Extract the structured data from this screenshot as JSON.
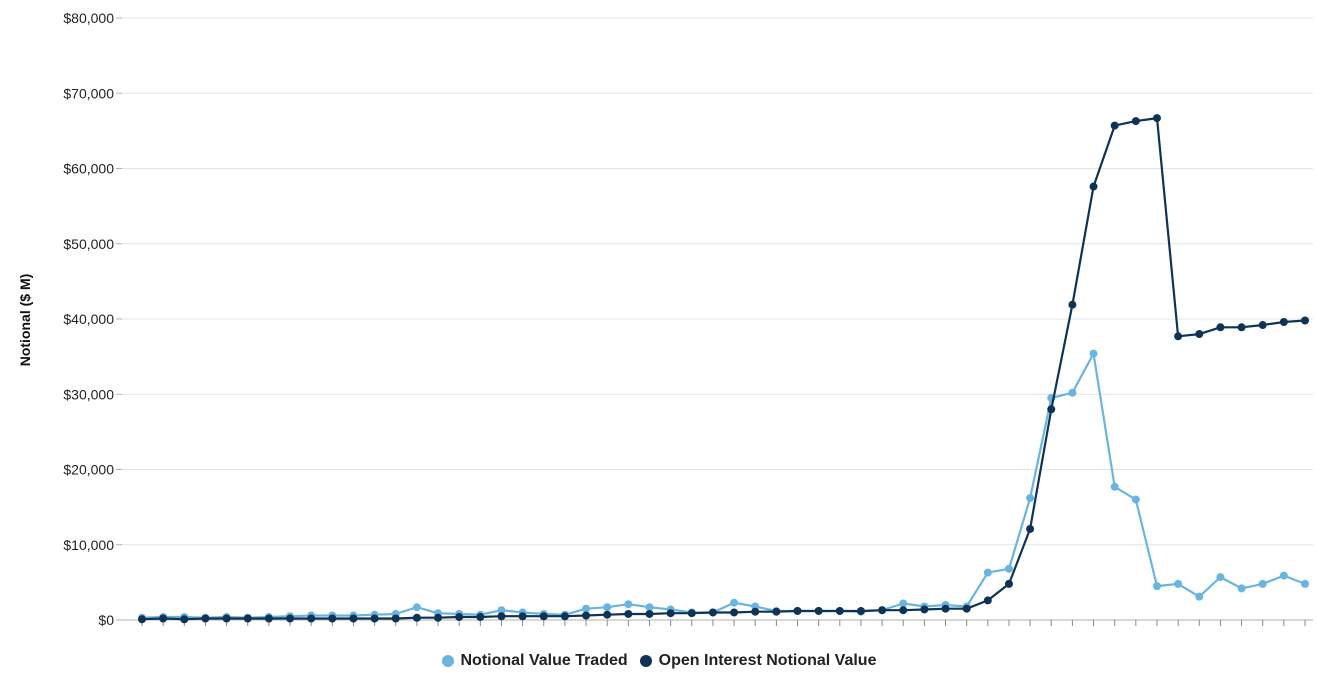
{
  "chart_data": {
    "type": "line",
    "title": "",
    "xlabel": "",
    "ylabel": "Notional ($ M)",
    "ylim": [
      0,
      80000
    ],
    "yticks": [
      "$0",
      "$10,000",
      "$20,000",
      "$30,000",
      "$40,000",
      "$50,000",
      "$60,000",
      "$70,000",
      "$80,000"
    ],
    "grid": "horizontal",
    "legend_position": "bottom-center",
    "x": [
      1,
      2,
      3,
      4,
      5,
      6,
      7,
      8,
      9,
      10,
      11,
      12,
      13,
      14,
      15,
      16,
      17,
      18,
      19,
      20,
      21,
      22,
      23,
      24,
      25,
      26,
      27,
      28,
      29,
      30,
      31,
      32,
      33,
      34,
      35,
      36,
      37,
      38,
      39,
      40,
      41,
      42,
      43,
      44,
      45,
      46,
      47,
      48,
      49,
      50,
      51,
      52,
      53,
      54,
      55,
      56
    ],
    "series": [
      {
        "name": "Notional Value Traded",
        "color": "#6ab4e2",
        "values": [
          300,
          400,
          400,
          300,
          400,
          300,
          400,
          500,
          600,
          600,
          600,
          700,
          800,
          1700,
          900,
          800,
          700,
          1300,
          1000,
          800,
          700,
          1500,
          1700,
          2100,
          1700,
          1400,
          1000,
          1000,
          2300,
          1800,
          1200,
          1200,
          1200,
          1200,
          1100,
          1300,
          2200,
          1800,
          2000,
          1800,
          6300,
          6800,
          16200,
          29500,
          30200,
          35400,
          17700,
          16000,
          4500,
          4800,
          3100,
          5700,
          4200,
          4800,
          5900,
          4800
        ]
      },
      {
        "name": "Open Interest Notional Value",
        "color": "#0e3354",
        "values": [
          100,
          200,
          100,
          200,
          200,
          200,
          200,
          200,
          200,
          200,
          200,
          200,
          200,
          300,
          300,
          400,
          400,
          500,
          500,
          500,
          500,
          600,
          700,
          800,
          800,
          900,
          900,
          1000,
          1000,
          1100,
          1100,
          1200,
          1200,
          1200,
          1200,
          1300,
          1300,
          1400,
          1500,
          1500,
          2600,
          4800,
          12100,
          28000,
          41900,
          57600,
          65700,
          66300,
          66700,
          37700,
          38000,
          38900,
          38900,
          39200,
          39600,
          39800
        ]
      }
    ]
  }
}
